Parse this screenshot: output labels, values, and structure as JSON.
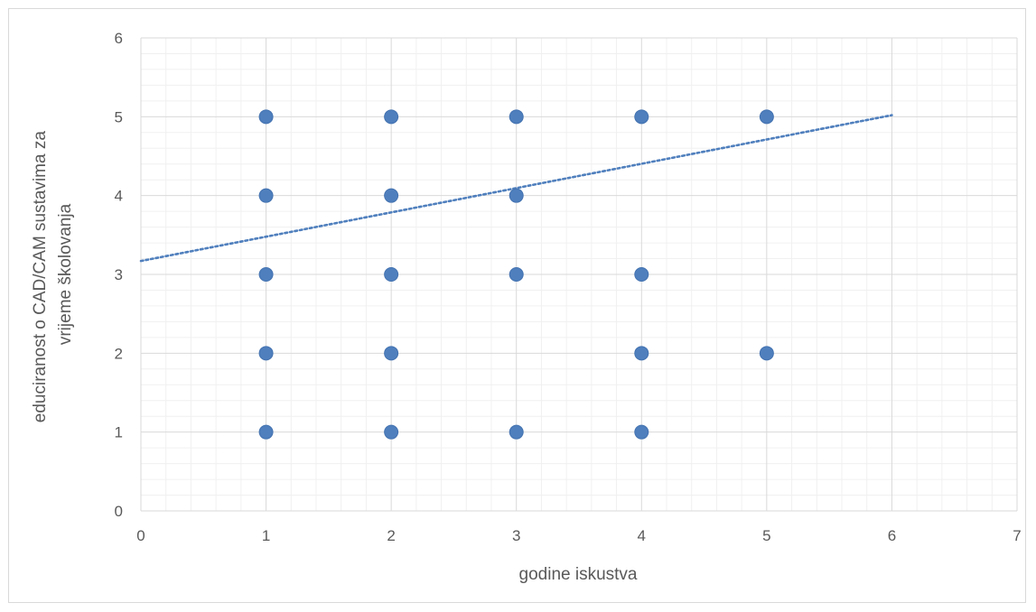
{
  "chart_data": {
    "type": "scatter",
    "title": "",
    "xlabel": "godine iskustva",
    "ylabel_lines": [
      "educiranost o CAD/CAM sustavima za",
      "vrijeme školovanja"
    ],
    "xlim": [
      0,
      7
    ],
    "ylim": [
      0,
      6
    ],
    "xticks": [
      "0",
      "1",
      "2",
      "3",
      "4",
      "5",
      "6",
      "7"
    ],
    "yticks": [
      "0",
      "1",
      "2",
      "3",
      "4",
      "5",
      "6"
    ],
    "grid": true,
    "minor_grid": true,
    "legend": "none",
    "series": [
      {
        "points": [
          [
            1,
            5
          ],
          [
            1,
            4
          ],
          [
            1,
            3
          ],
          [
            1,
            2
          ],
          [
            1,
            1
          ],
          [
            2,
            5
          ],
          [
            2,
            4
          ],
          [
            2,
            3
          ],
          [
            2,
            2
          ],
          [
            2,
            1
          ],
          [
            3,
            5
          ],
          [
            3,
            4
          ],
          [
            3,
            3
          ],
          [
            3,
            1
          ],
          [
            4,
            5
          ],
          [
            4,
            3
          ],
          [
            4,
            2
          ],
          [
            4,
            1
          ],
          [
            5,
            5
          ],
          [
            5,
            2
          ]
        ],
        "color": "#4f7fbd"
      }
    ],
    "trendline": {
      "type": "linear",
      "x_range": [
        0,
        6
      ],
      "y_at_start": 3.17,
      "y_at_end": 5.02,
      "style": "dotted",
      "color": "#4f7fbd"
    }
  }
}
